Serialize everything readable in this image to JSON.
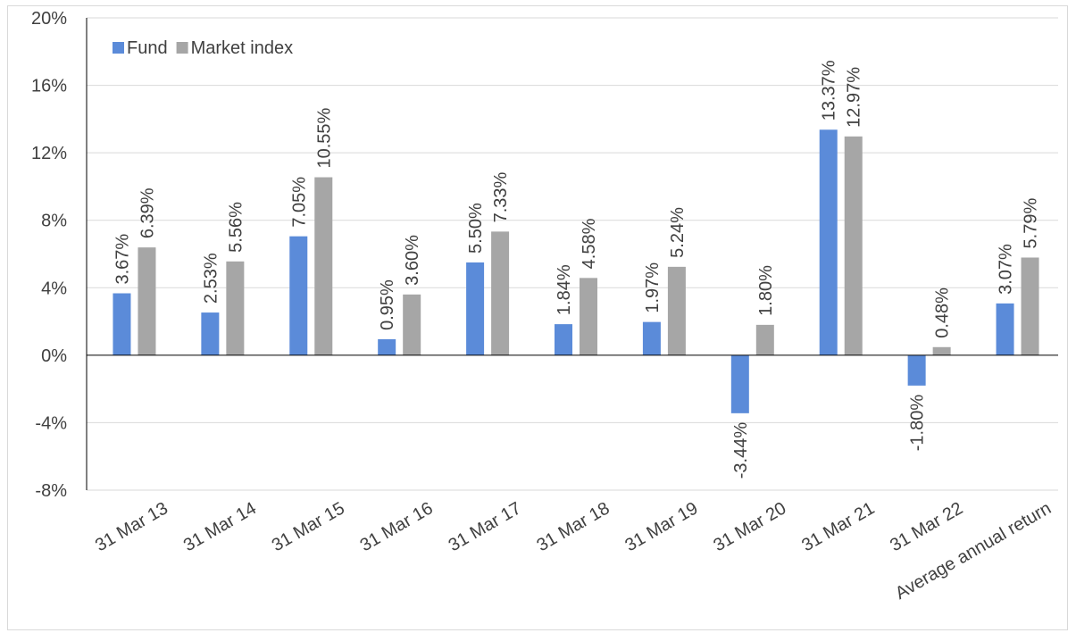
{
  "chart_data": {
    "type": "bar",
    "categories": [
      "31 Mar 13",
      "31 Mar 14",
      "31 Mar 15",
      "31 Mar 16",
      "31 Mar 17",
      "31 Mar 18",
      "31 Mar 19",
      "31 Mar 20",
      "31 Mar 21",
      "31 Mar 22",
      "Average annual return"
    ],
    "series": [
      {
        "name": "Fund",
        "color": "#5b8bd9",
        "values": [
          3.67,
          2.53,
          7.05,
          0.95,
          5.5,
          1.84,
          1.97,
          -3.44,
          13.37,
          -1.8,
          3.07
        ],
        "labels": [
          "3.67%",
          "2.53%",
          "7.05%",
          "0.95%",
          "5.50%",
          "1.84%",
          "1.97%",
          "-3.44%",
          "13.37%",
          "-1.80%",
          "3.07%"
        ]
      },
      {
        "name": "Market index",
        "color": "#a6a6a6",
        "values": [
          6.39,
          5.56,
          10.55,
          3.6,
          7.33,
          4.58,
          5.24,
          1.8,
          12.97,
          0.48,
          5.79
        ],
        "labels": [
          "6.39%",
          "5.56%",
          "10.55%",
          "3.60%",
          "7.33%",
          "4.58%",
          "5.24%",
          "1.80%",
          "12.97%",
          "0.48%",
          "5.79%"
        ]
      }
    ],
    "ylim": [
      -8,
      20
    ],
    "yticks": [
      -8,
      -4,
      0,
      4,
      8,
      12,
      16,
      20
    ],
    "ytick_labels": [
      "-8%",
      "-4%",
      "0%",
      "4%",
      "8%",
      "12%",
      "16%",
      "20%"
    ],
    "title": "",
    "xlabel": "",
    "ylabel": "",
    "grid": true,
    "legend_position": "top-left",
    "gridline_color": "#d9d9d9",
    "axis_color": "#000000"
  }
}
